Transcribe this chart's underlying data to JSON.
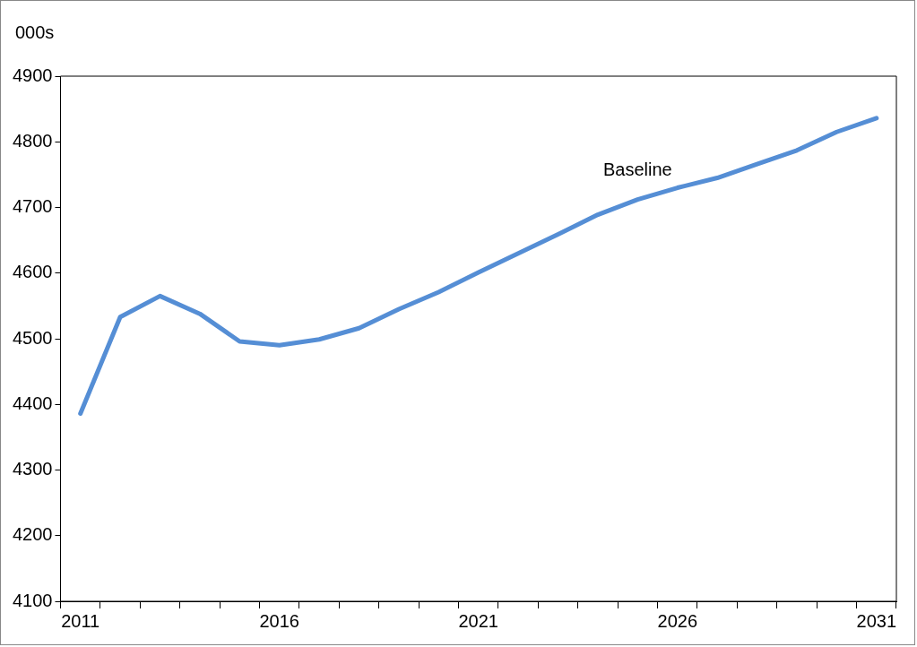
{
  "chart_data": {
    "type": "line",
    "ylabel": "000s",
    "categories": [
      "2011",
      null,
      null,
      null,
      null,
      "2016",
      null,
      null,
      null,
      null,
      "2021",
      null,
      null,
      null,
      null,
      "2026",
      null,
      null,
      null,
      null,
      "2031"
    ],
    "series": [
      {
        "name": "Baseline",
        "color": "#558ed5",
        "values": [
          4386,
          4533,
          4565,
          4538,
          4496,
          4490,
          4499,
          4516,
          4545,
          4571,
          4601,
          4630,
          4659,
          4689,
          4712,
          4730,
          4745,
          4766,
          4787,
          4815,
          4836
        ]
      }
    ],
    "ylim": [
      4100,
      4900
    ],
    "yticks": [
      4100,
      4200,
      4300,
      4400,
      4500,
      4600,
      4700,
      4800,
      4900
    ],
    "grid": false,
    "legend": false,
    "marker": "none",
    "line_style": "solid"
  }
}
